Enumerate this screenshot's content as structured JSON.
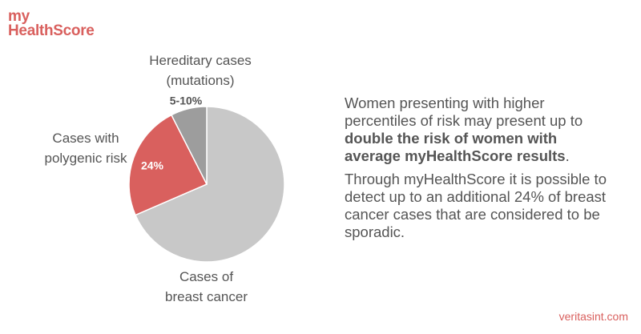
{
  "logo": {
    "line1": "my",
    "line2": "HealthScore"
  },
  "chart_data": {
    "type": "pie",
    "categories": [
      "Cases of breast cancer",
      "Cases with polygenic risk",
      "Hereditary cases (mutations)"
    ],
    "values": [
      68.5,
      24,
      7.5
    ],
    "value_labels": [
      null,
      "24%",
      "5-10%"
    ],
    "colors": [
      "#c8c8c8",
      "#d9605e",
      "#9d9d9d"
    ]
  },
  "paragraphs": [
    [
      "Women presenting with higher percentiles of risk may present up to ",
      "double the risk of women with average myHealthScore results",
      "."
    ],
    [
      "Through myHealthScore it is possible to detect up to an additional 24% of breast cancer cases that are considered to be sporadic."
    ]
  ],
  "footer": "veritasint.com"
}
